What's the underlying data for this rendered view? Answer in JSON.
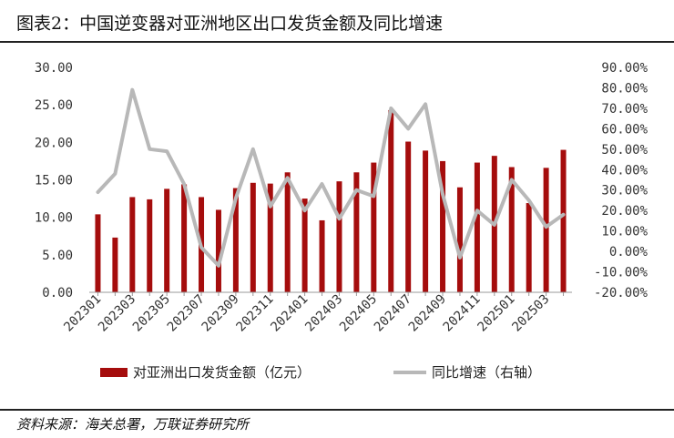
{
  "header": {
    "title": "图表2：中国逆变器对亚洲地区出口发货金额及同比增速"
  },
  "footer": {
    "source": "资料来源：海关总署，万联证券研究所"
  },
  "colors": {
    "bar": "#a50d0d",
    "line": "#b8b8b8",
    "axis": "#999999"
  },
  "chart_data": {
    "type": "bar",
    "categories": [
      "202301",
      "202302",
      "202303",
      "202304",
      "202305",
      "202306",
      "202307",
      "202308",
      "202309",
      "202310",
      "202311",
      "202312",
      "202401",
      "202402",
      "202403",
      "202404",
      "202405",
      "202406",
      "202407",
      "202408",
      "202409",
      "202410",
      "202411",
      "202412",
      "202501",
      "202502",
      "202503",
      "202504"
    ],
    "x_tick_labels": [
      "202301",
      "202303",
      "202305",
      "202307",
      "202309",
      "202311",
      "202401",
      "202403",
      "202405",
      "202407",
      "202409",
      "202411",
      "202501",
      "202503"
    ],
    "series": [
      {
        "name": "对亚洲出口发货金额（亿元）",
        "type": "bar",
        "axis": "left",
        "values": [
          10.4,
          7.3,
          12.7,
          12.4,
          13.8,
          14.4,
          12.7,
          11.0,
          13.9,
          14.6,
          14.5,
          16.0,
          12.5,
          9.6,
          14.8,
          16.0,
          17.3,
          24.3,
          20.1,
          18.9,
          17.5,
          14.0,
          17.3,
          18.2,
          16.7,
          11.9,
          16.6,
          19.0
        ]
      },
      {
        "name": "同比增速（右轴）",
        "type": "line",
        "axis": "right",
        "values": [
          0.29,
          0.38,
          0.79,
          0.5,
          0.49,
          0.33,
          0.02,
          -0.07,
          0.26,
          0.5,
          0.22,
          0.36,
          0.2,
          0.33,
          0.16,
          0.3,
          0.27,
          0.7,
          0.6,
          0.72,
          0.28,
          -0.03,
          0.2,
          0.13,
          0.35,
          0.25,
          0.12,
          0.18
        ]
      }
    ],
    "left_axis": {
      "min": 0,
      "max": 30,
      "step": 5,
      "tick_labels": [
        "0.00",
        "5.00",
        "10.00",
        "15.00",
        "20.00",
        "25.00",
        "30.00"
      ]
    },
    "right_axis": {
      "min": -0.2,
      "max": 0.9,
      "step": 0.1,
      "tick_labels": [
        "-20.00%",
        "-10.00%",
        "0.00%",
        "10.00%",
        "20.00%",
        "30.00%",
        "40.00%",
        "50.00%",
        "60.00%",
        "70.00%",
        "80.00%",
        "90.00%"
      ]
    },
    "legend": {
      "position": "bottom"
    },
    "grid": false
  }
}
